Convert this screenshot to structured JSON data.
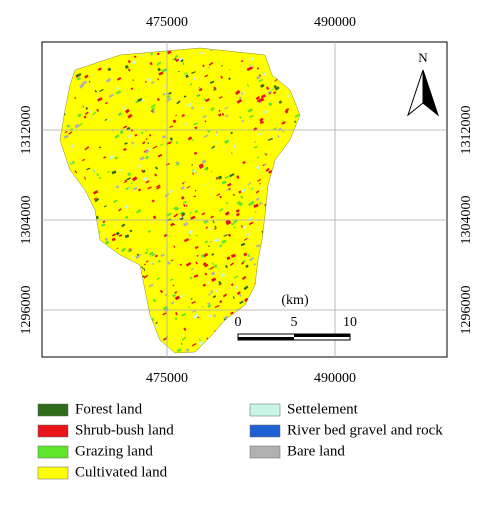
{
  "map": {
    "x_labels": [
      "475000",
      "490000"
    ],
    "y_labels": [
      "1312000",
      "1304000",
      "1296000"
    ],
    "north": "N",
    "scale": {
      "unit": "(km)",
      "ticks": [
        "0",
        "5",
        "10"
      ]
    }
  },
  "legend": [
    {
      "label": "Forest land",
      "color": "#2e6b1a"
    },
    {
      "label": "Shrub-bush land",
      "color": "#e8141a"
    },
    {
      "label": "Grazing land",
      "color": "#5fe62a"
    },
    {
      "label": "Cultivated land",
      "color": "#ffff00"
    },
    {
      "label": "Settelement",
      "color": "#c8f5e6"
    },
    {
      "label": "River bed gravel and rock",
      "color": "#1f5fd4"
    },
    {
      "label": "Bare land",
      "color": "#b0b0b0"
    }
  ]
}
